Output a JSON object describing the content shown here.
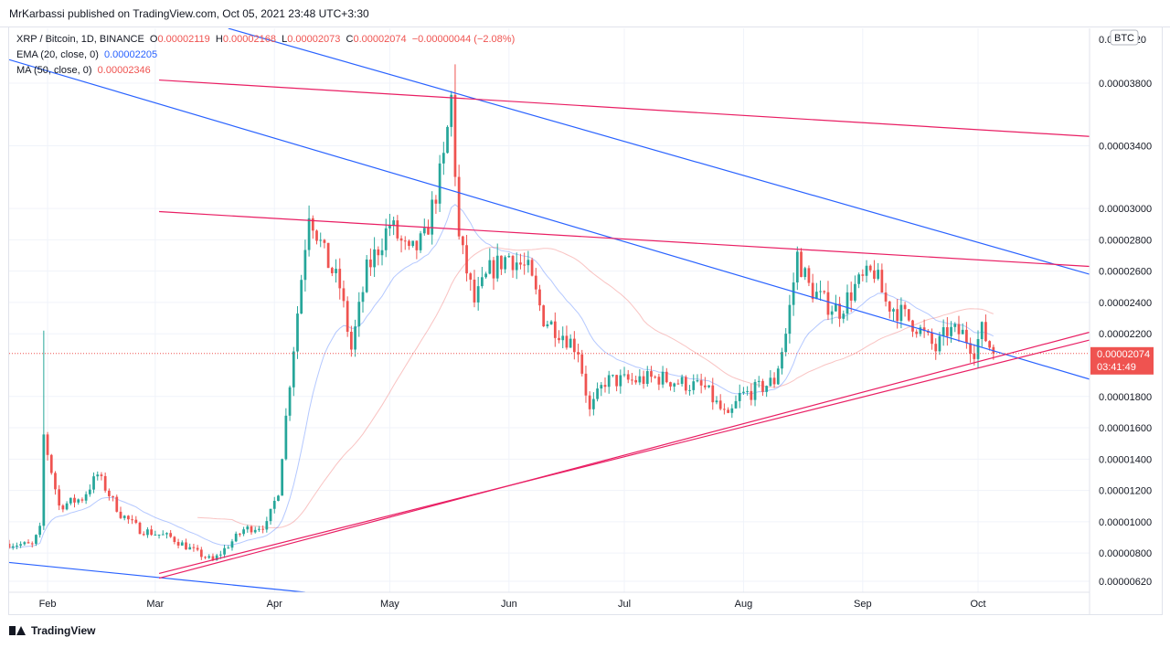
{
  "header": {
    "publisher_text": "MrKarbassi published on TradingView.com, Oct 05, 2021 23:48 UTC+3:30"
  },
  "legend": {
    "symbol": "XRP / Bitcoin, 1D, BINANCE",
    "o_label": "O",
    "o_value": "0.00002119",
    "h_label": "H",
    "h_value": "0.00002168",
    "l_label": "L",
    "l_value": "0.00002073",
    "c_label": "C",
    "c_value": "0.00002074",
    "change": "−0.00000044 (−2.08%)",
    "ema_label": "EMA (20, close, 0)",
    "ema_value": "0.00002205",
    "ma_label": "MA (50, close, 0)",
    "ma_value": "0.00002346"
  },
  "footer": {
    "brand": "TradingView"
  },
  "colors": {
    "up": "#26a69a",
    "down": "#ef5350",
    "ema": "#2962ff",
    "ma": "#ef5350",
    "trend_blue": "#2962ff",
    "trend_red": "#e91e63",
    "price_tag": "#ef5350"
  },
  "chart_data": {
    "type": "candlestick",
    "currency_label": "BTC",
    "ylim": [
      5.5e-06,
      4.15e-05
    ],
    "ytick_labels": [
      "0.00000620",
      "0.00000800",
      "0.00001000",
      "0.00001200",
      "0.00001400",
      "0.00001600",
      "0.00001800",
      "0.00002200",
      "0.00002400",
      "0.00002600",
      "0.00002800",
      "0.00003000",
      "0.00003400",
      "0.00003800",
      "0.0000420"
    ],
    "ytick_values": [
      6.2e-06,
      8e-06,
      1e-05,
      1.2e-05,
      1.4e-05,
      1.6e-05,
      1.8e-05,
      2.2e-05,
      2.4e-05,
      2.6e-05,
      2.8e-05,
      3e-05,
      3.4e-05,
      3.8e-05,
      4.2e-05
    ],
    "x_labels": [
      "Feb",
      "Mar",
      "Apr",
      "May",
      "Jun",
      "Jul",
      "Aug",
      "Sep",
      "Oct"
    ],
    "x_label_dates": [
      "2021-02-01",
      "2021-03-01",
      "2021-04-01",
      "2021-05-01",
      "2021-06-01",
      "2021-07-01",
      "2021-08-01",
      "2021-09-01",
      "2021-10-01"
    ],
    "x_range_dates": [
      "2021-01-22",
      "2021-10-30"
    ],
    "last_price": {
      "value": 2.074e-05,
      "label": "0.00002074",
      "countdown": "03:41:49"
    },
    "anchors": [
      [
        "2021-01-22",
        8.6e-06
      ],
      [
        "2021-01-28",
        8.5e-06
      ],
      [
        "2021-01-30",
        9.5e-06
      ],
      [
        "2021-01-31",
        1.55e-05
      ],
      [
        "2021-02-04",
        1.1e-05
      ],
      [
        "2021-02-10",
        1.15e-05
      ],
      [
        "2021-02-14",
        1.3e-05
      ],
      [
        "2021-02-20",
        1.05e-05
      ],
      [
        "2021-02-25",
        9.5e-06
      ],
      [
        "2021-03-05",
        9e-06
      ],
      [
        "2021-03-12",
        8e-06
      ],
      [
        "2021-03-16",
        7.5e-06
      ],
      [
        "2021-03-24",
        9.5e-06
      ],
      [
        "2021-03-30",
        9.8e-06
      ],
      [
        "2021-04-02",
        1.2e-05
      ],
      [
        "2021-04-05",
        1.9e-05
      ],
      [
        "2021-04-10",
        3e-05
      ],
      [
        "2021-04-14",
        2.7e-05
      ],
      [
        "2021-04-18",
        2.5e-05
      ],
      [
        "2021-04-21",
        2.1e-05
      ],
      [
        "2021-04-25",
        2.6e-05
      ],
      [
        "2021-05-01",
        2.9e-05
      ],
      [
        "2021-05-06",
        2.7e-05
      ],
      [
        "2021-05-10",
        2.8e-05
      ],
      [
        "2021-05-15",
        3.3e-05
      ],
      [
        "2021-05-17",
        3.7e-05
      ],
      [
        "2021-05-19",
        2.8e-05
      ],
      [
        "2021-05-23",
        2.4e-05
      ],
      [
        "2021-05-27",
        2.6e-05
      ],
      [
        "2021-06-01",
        2.7e-05
      ],
      [
        "2021-06-06",
        2.6e-05
      ],
      [
        "2021-06-10",
        2.3e-05
      ],
      [
        "2021-06-15",
        2.2e-05
      ],
      [
        "2021-06-19",
        2.1e-05
      ],
      [
        "2021-06-22",
        1.7e-05
      ],
      [
        "2021-06-26",
        1.9e-05
      ],
      [
        "2021-07-03",
        1.9e-05
      ],
      [
        "2021-07-10",
        1.92e-05
      ],
      [
        "2021-07-17",
        1.88e-05
      ],
      [
        "2021-07-22",
        1.85e-05
      ],
      [
        "2021-07-28",
        1.65e-05
      ],
      [
        "2021-07-31",
        1.8e-05
      ],
      [
        "2021-08-05",
        1.85e-05
      ],
      [
        "2021-08-09",
        1.9e-05
      ],
      [
        "2021-08-12",
        2.2e-05
      ],
      [
        "2021-08-15",
        2.7e-05
      ],
      [
        "2021-08-18",
        2.5e-05
      ],
      [
        "2021-08-22",
        2.4e-05
      ],
      [
        "2021-08-26",
        2.35e-05
      ],
      [
        "2021-08-30",
        2.5e-05
      ],
      [
        "2021-09-04",
        2.6e-05
      ],
      [
        "2021-09-07",
        2.4e-05
      ],
      [
        "2021-09-10",
        2.35e-05
      ],
      [
        "2021-09-15",
        2.25e-05
      ],
      [
        "2021-09-20",
        2.1e-05
      ],
      [
        "2021-09-23",
        2.22e-05
      ],
      [
        "2021-09-27",
        2.2e-05
      ],
      [
        "2021-09-30",
        2.1e-05
      ],
      [
        "2021-10-02",
        2.22e-05
      ],
      [
        "2021-10-05",
        2.074e-05
      ]
    ],
    "wick_spikes": [
      {
        "date": "2021-01-31",
        "high": 2.22e-05
      },
      {
        "date": "2021-05-18",
        "high": 3.92e-05
      }
    ],
    "ema": {
      "name": "EMA (20, close, 0)",
      "period": 20
    },
    "ma": {
      "name": "MA (50, close, 0)",
      "period": 50
    },
    "trendlines": [
      {
        "color": "trend_blue",
        "points": [
          [
            "2021-01-22",
            3.95e-05
          ],
          [
            "2021-10-30",
            1.91e-05
          ]
        ]
      },
      {
        "color": "trend_blue",
        "points": [
          [
            "2021-03-20",
            4.15e-05
          ],
          [
            "2021-10-30",
            2.58e-05
          ]
        ]
      },
      {
        "color": "trend_blue",
        "points": [
          [
            "2021-01-22",
            7.4e-06
          ],
          [
            "2021-04-09",
            5.5e-06
          ]
        ]
      },
      {
        "color": "trend_red",
        "points": [
          [
            "2021-03-02",
            3.82e-05
          ],
          [
            "2021-10-30",
            3.46e-05
          ]
        ]
      },
      {
        "color": "trend_red",
        "points": [
          [
            "2021-03-02",
            2.98e-05
          ],
          [
            "2021-10-30",
            2.63e-05
          ]
        ]
      },
      {
        "color": "trend_red",
        "points": [
          [
            "2021-03-02",
            6.4e-06
          ],
          [
            "2021-10-30",
            2.21e-05
          ]
        ]
      },
      {
        "color": "trend_red",
        "points": [
          [
            "2021-03-02",
            6.7e-06
          ],
          [
            "2021-10-30",
            2.16e-05
          ]
        ]
      }
    ]
  }
}
